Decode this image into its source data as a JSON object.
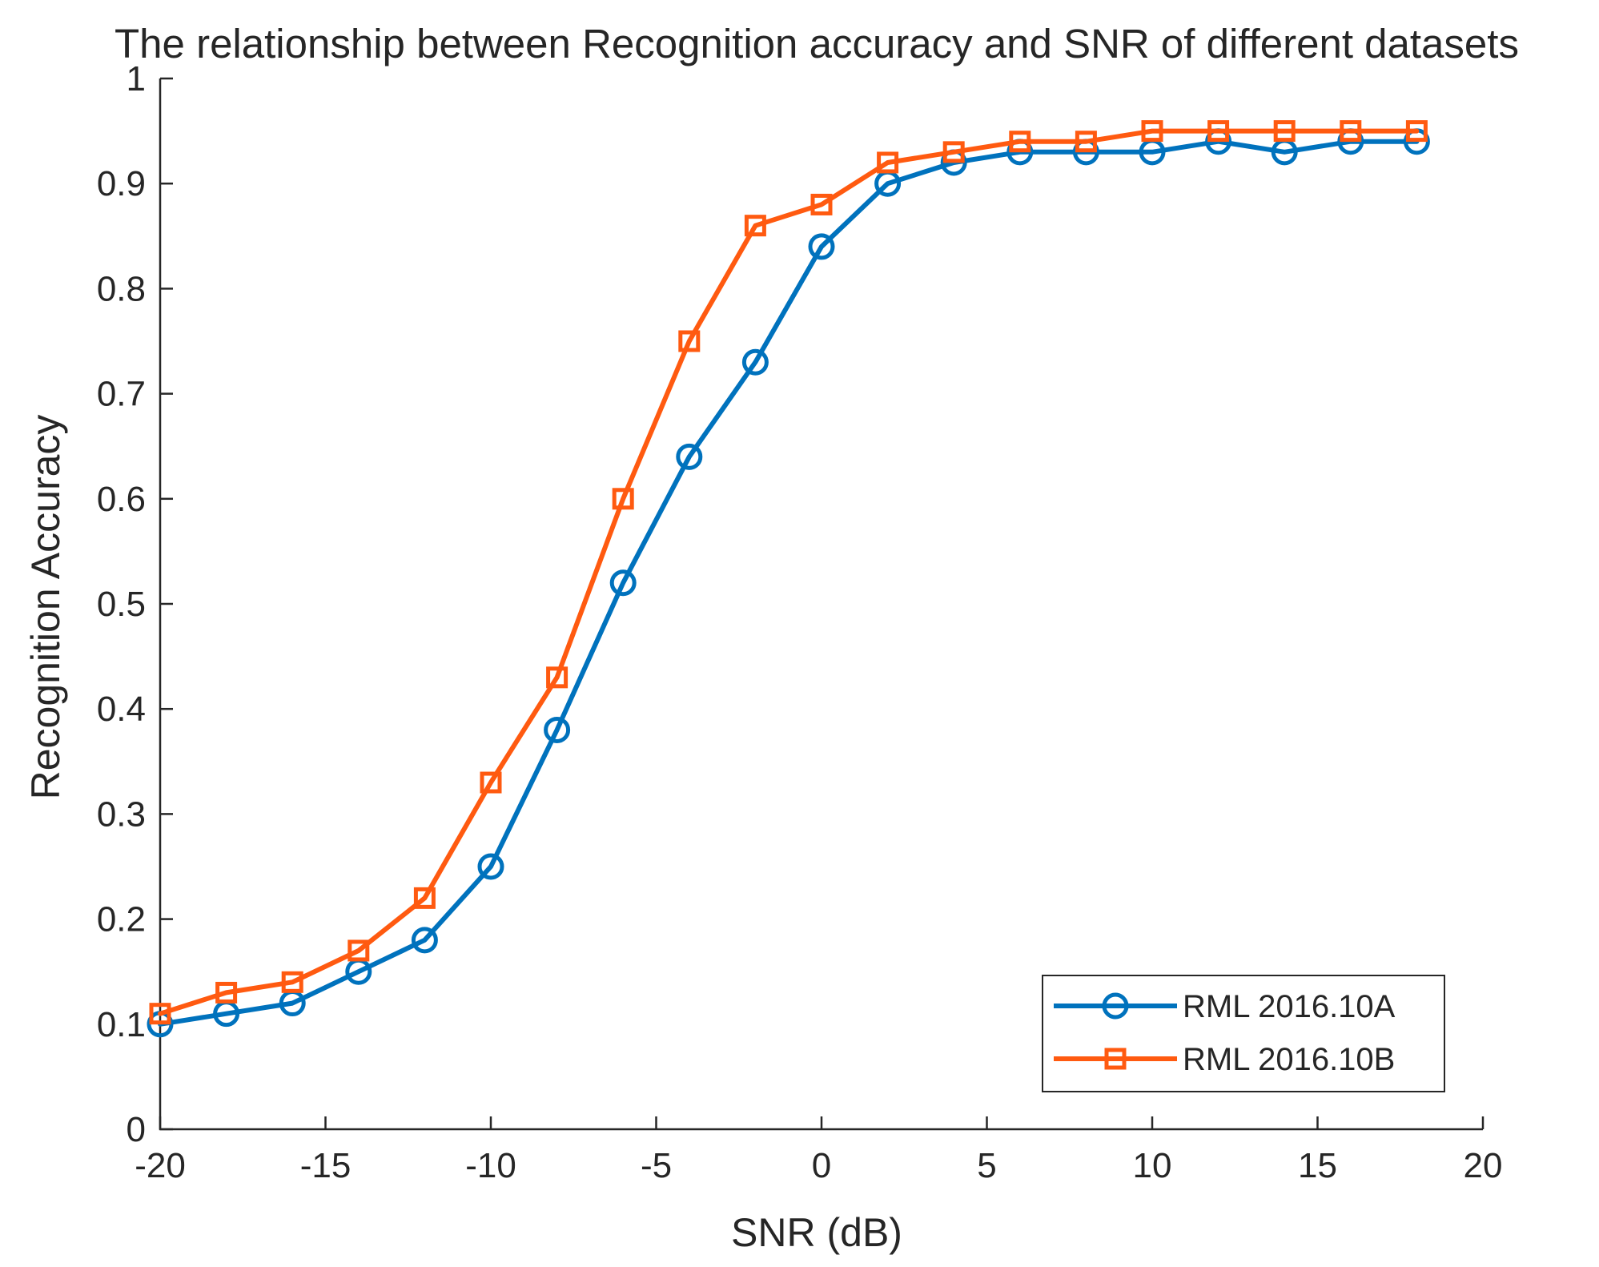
{
  "chart_data": {
    "type": "line",
    "title": "The relationship between Recognition accuracy and SNR of different datasets",
    "xlabel": "SNR (dB)",
    "ylabel": "Recognition Accuracy",
    "xlim": [
      -20,
      20
    ],
    "ylim": [
      0,
      1
    ],
    "grid": false,
    "legend_position": "bottom-right",
    "xticks": [
      -20,
      -15,
      -10,
      -5,
      0,
      5,
      10,
      15,
      20
    ],
    "xtick_labels": [
      "-20",
      "-15",
      "-10",
      "-5",
      "0",
      "5",
      "10",
      "15",
      "20"
    ],
    "yticks": [
      0,
      0.1,
      0.2,
      0.3,
      0.4,
      0.5,
      0.6,
      0.7,
      0.8,
      0.9,
      1
    ],
    "ytick_labels": [
      "0",
      "0.1",
      "0.2",
      "0.3",
      "0.4",
      "0.5",
      "0.6",
      "0.7",
      "0.8",
      "0.9",
      "1"
    ],
    "x": [
      -20,
      -18,
      -16,
      -14,
      -12,
      -10,
      -8,
      -6,
      -4,
      -2,
      0,
      2,
      4,
      6,
      8,
      10,
      12,
      14,
      16,
      18
    ],
    "series": [
      {
        "name": "RML 2016.10A",
        "color": "#0072BD",
        "marker": "circle",
        "values": [
          0.1,
          0.11,
          0.12,
          0.15,
          0.18,
          0.25,
          0.38,
          0.52,
          0.64,
          0.73,
          0.84,
          0.9,
          0.92,
          0.93,
          0.93,
          0.93,
          0.94,
          0.93,
          0.94,
          0.94
        ]
      },
      {
        "name": "RML 2016.10B",
        "color": "#FF5A10",
        "marker": "square",
        "values": [
          0.11,
          0.13,
          0.14,
          0.17,
          0.22,
          0.33,
          0.43,
          0.6,
          0.75,
          0.86,
          0.88,
          0.92,
          0.93,
          0.94,
          0.94,
          0.95,
          0.95,
          0.95,
          0.95,
          0.95
        ]
      }
    ]
  }
}
